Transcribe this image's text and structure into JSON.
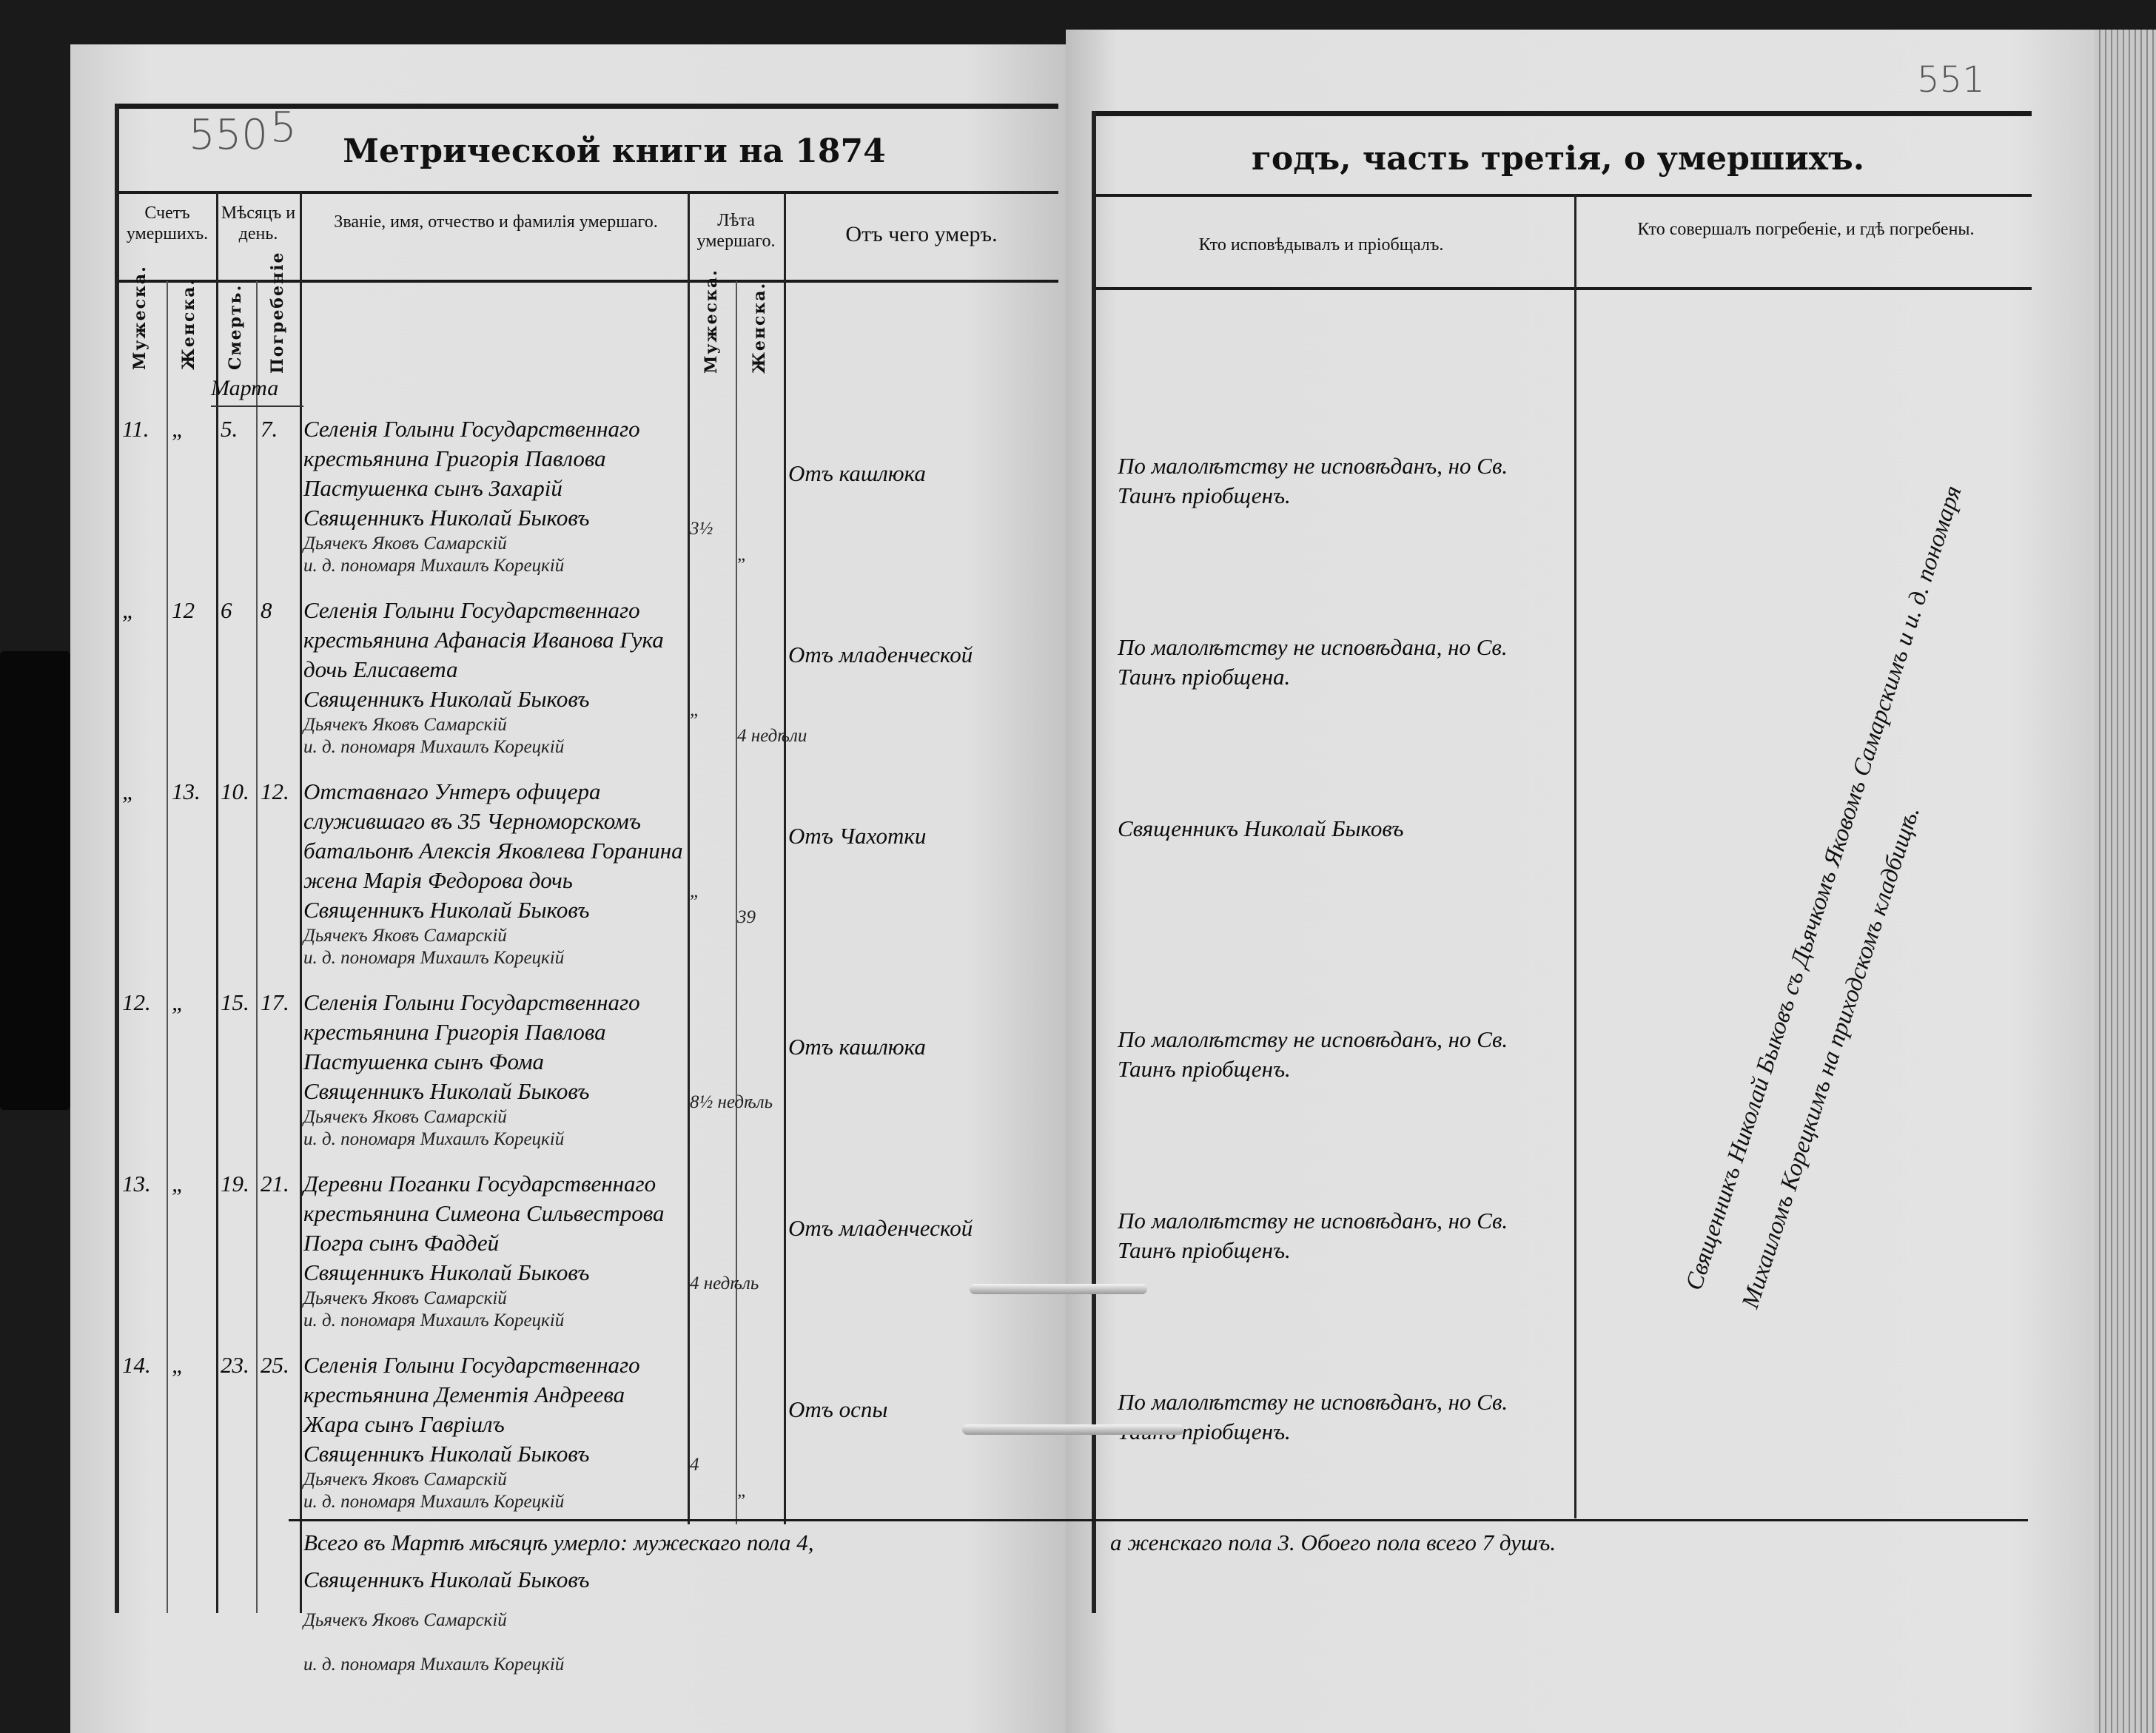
{
  "page_numbers": {
    "left": "550",
    "left_extra": "5",
    "right": "551"
  },
  "header": {
    "title_left": "Метрической книги на 1874",
    "title_right": "годъ, часть третія, о умершихъ."
  },
  "columns": {
    "count": "Счетъ умершихъ.",
    "month_day": "Мѣсяцъ и день.",
    "name": "Званіе, имя, отчество и фамилія умершаго.",
    "age": "Лѣта умершаго.",
    "cause": "Отъ чего умеръ.",
    "confessor": "Кто исповѣдывалъ и пріобщалъ.",
    "burial": "Кто совершалъ погребеніе, и гдѣ погребены.",
    "sub_male": "Мужеска.",
    "sub_female": "Женска.",
    "sub_death": "Смерть.",
    "sub_burial": "Погребеніе",
    "sub_age_male": "Мужеска.",
    "sub_age_female": "Женска."
  },
  "month": "Марта",
  "entries": [
    {
      "male": "11.",
      "female": "„",
      "death": "5.",
      "burial": "7.",
      "name": "Селенія Голыни Государственнаго крестьянина Григорія Павлова Пастушенка сынъ Захарій",
      "age_male": "3½",
      "age_female": "„",
      "cause": "Отъ кашлюка",
      "confession": "По малолѣтству не исповѣданъ, но Св. Таинъ пріобщенъ.",
      "sig_priest": "Священникъ Николай Быковъ",
      "sig_deacon": "Дьячекъ Яковъ Самарскій",
      "sig_sexton": "и. д. пономаря Михаилъ Корецкій"
    },
    {
      "male": "„",
      "female": "12",
      "death": "6",
      "burial": "8",
      "name": "Селенія Голыни Государственнаго крестьянина Афанасія Иванова Гука дочь Елисавета",
      "age_male": "„",
      "age_female": "4 недѣли",
      "cause": "Отъ младенческой",
      "confession": "По малолѣтству не исповѣдана, но Св. Таинъ пріобщена.",
      "sig_priest": "Священникъ Николай Быковъ",
      "sig_deacon": "Дьячекъ Яковъ Самарскій",
      "sig_sexton": "и. д. пономаря Михаилъ Корецкій"
    },
    {
      "male": "„",
      "female": "13.",
      "death": "10.",
      "burial": "12.",
      "name": "Отставнаго Унтеръ офицера служившаго въ 35 Черноморскомъ батальонѣ Алексія Яковлева Горанина жена Марія Федорова дочь",
      "age_male": "„",
      "age_female": "39",
      "cause": "Отъ Чахотки",
      "confession": "Священникъ Николай Быковъ",
      "sig_priest": "Священникъ Николай Быковъ",
      "sig_deacon": "Дьячекъ Яковъ Самарскій",
      "sig_sexton": "и. д. пономаря Михаилъ Корецкій"
    },
    {
      "male": "12.",
      "female": "„",
      "death": "15.",
      "burial": "17.",
      "name": "Селенія Голыни Государственнаго крестьянина Григорія Павлова Пастушенка сынъ Фома",
      "age_male": "8½ недѣль",
      "age_female": "",
      "cause": "Отъ кашлюка",
      "confession": "По малолѣтству не исповѣданъ, но Св. Таинъ пріобщенъ.",
      "sig_priest": "Священникъ Николай Быковъ",
      "sig_deacon": "Дьячекъ Яковъ Самарскій",
      "sig_sexton": "и. д. пономаря Михаилъ Корецкій"
    },
    {
      "male": "13.",
      "female": "„",
      "death": "19.",
      "burial": "21.",
      "name": "Деревни Поганки Государственнаго крестьянина Симеона Сильвестрова Погра сынъ Фаддей",
      "age_male": "4 недѣль",
      "age_female": "",
      "cause": "Отъ младенческой",
      "confession": "По малолѣтству не исповѣданъ, но Св. Таинъ пріобщенъ.",
      "sig_priest": "Священникъ Николай Быковъ",
      "sig_deacon": "Дьячекъ Яковъ Самарскій",
      "sig_sexton": "и. д. пономаря Михаилъ Корецкій"
    },
    {
      "male": "14.",
      "female": "„",
      "death": "23.",
      "burial": "25.",
      "name": "Селенія Голыни Государственнаго крестьянина Дементія Андреева Жара сынъ Гавріилъ",
      "age_male": "4",
      "age_female": "„",
      "cause": "Отъ оспы",
      "confession": "По малолѣтству не исповѣданъ, но Св. Таинъ пріобщенъ.",
      "sig_priest": "Священникъ Николай Быковъ",
      "sig_deacon": "Дьячекъ Яковъ Самарскій",
      "sig_sexton": "и. д. пономаря Михаилъ Корецкій"
    }
  ],
  "burial_note": "Священникъ Николай Быковъ съ Дьячкомъ Яковомъ Самарскимъ и и. д. пономаря Михаиломъ Корецкимъ на приходскомъ кладбищѣ.",
  "total": {
    "left": "Всего въ Мартѣ мѣсяцѣ умерло: мужескаго пола 4,",
    "right": "а женскаго пола 3. Обоего пола всего 7 душъ.",
    "sig_priest": "Священникъ Николай Быковъ",
    "sig_deacon": "Дьячекъ Яковъ Самарскій",
    "sig_sexton": "и. д. пономаря Михаилъ Корецкій"
  }
}
